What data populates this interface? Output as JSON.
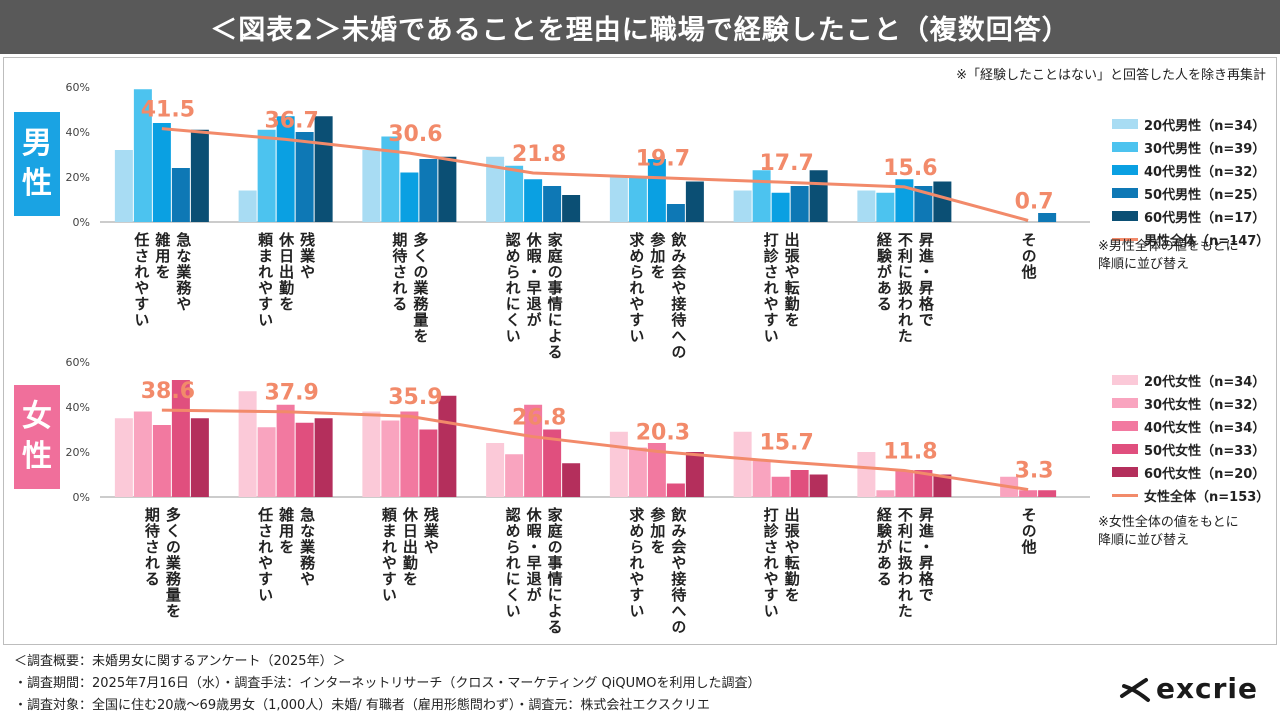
{
  "header": {
    "title": "＜図表2＞未婚であることを理由に職場で経験したこと（複数回答）",
    "note": "※「経験したことはない」と回答した人を除き再集計"
  },
  "male": {
    "badge": [
      "男",
      "性"
    ],
    "sort_note": [
      "※男性全体の値をもとに",
      "降順に並び替え"
    ]
  },
  "female": {
    "badge": [
      "女",
      "性"
    ],
    "sort_note": [
      "※女性全体の値をもとに",
      "降順に並び替え"
    ]
  },
  "colors": {
    "male_series": [
      "#a8dcf3",
      "#4cc3ef",
      "#0aa0e2",
      "#0e78b5",
      "#0b4f74"
    ],
    "male_total": "#f28a6a",
    "female_series": [
      "#fbc9d8",
      "#f9a4bf",
      "#f279a0",
      "#e04f7e",
      "#b42f5c"
    ],
    "female_total": "#f28a6a",
    "male_badge": "#1aa3e3",
    "female_badge": "#f06f9b"
  },
  "chart_data": [
    {
      "type": "bar",
      "group": "male",
      "ylim": [
        0,
        60
      ],
      "yticks": [
        "0%",
        "20%",
        "40%",
        "60%"
      ],
      "categories": [
        [
          "急な業務や",
          "雑用を",
          "任されやすい"
        ],
        [
          "残業や",
          "休日出勤を",
          "頼まれやすい"
        ],
        [
          "多くの業務量を",
          "期待される"
        ],
        [
          "家庭の事情による",
          "休暇・早退が",
          "認められにくい"
        ],
        [
          "飲み会や接待への",
          "参加を",
          "求められやすい"
        ],
        [
          "出張や転勤を",
          "打診されやすい"
        ],
        [
          "昇進・昇格で",
          "不利に扱われた",
          "経験がある"
        ],
        [
          "その他"
        ]
      ],
      "series": [
        {
          "name": "20代男性（n=34）",
          "values": [
            32,
            14,
            32,
            29,
            20,
            14,
            14,
            0
          ]
        },
        {
          "name": "30代男性（n=39）",
          "values": [
            59,
            41,
            38,
            25,
            20,
            23,
            13,
            0
          ]
        },
        {
          "name": "40代男性（n=32）",
          "values": [
            44,
            47,
            22,
            19,
            28,
            13,
            19,
            0
          ]
        },
        {
          "name": "50代男性（n=25）",
          "values": [
            24,
            40,
            28,
            16,
            8,
            16,
            16,
            4
          ]
        },
        {
          "name": "60代男性（n=17）",
          "values": [
            41,
            47,
            29,
            12,
            18,
            23,
            18,
            0
          ]
        }
      ],
      "total": {
        "name": "男性全体（n=147）",
        "values": [
          41.5,
          36.7,
          30.6,
          21.8,
          19.7,
          17.7,
          15.6,
          0.7
        ],
        "labels": [
          "41.5",
          "36.7",
          "30.6",
          "21.8",
          "19.7",
          "17.7",
          "15.6",
          "0.7"
        ]
      }
    },
    {
      "type": "bar",
      "group": "female",
      "ylim": [
        0,
        60
      ],
      "yticks": [
        "0%",
        "20%",
        "40%",
        "60%"
      ],
      "categories": [
        [
          "多くの業務量を",
          "期待される"
        ],
        [
          "急な業務や",
          "雑用を",
          "任されやすい"
        ],
        [
          "残業や",
          "休日出勤を",
          "頼まれやすい"
        ],
        [
          "家庭の事情による",
          "休暇・早退が",
          "認められにくい"
        ],
        [
          "飲み会や接待への",
          "参加を",
          "求められやすい"
        ],
        [
          "出張や転勤を",
          "打診されやすい"
        ],
        [
          "昇進・昇格で",
          "不利に扱われた",
          "経験がある"
        ],
        [
          "その他"
        ]
      ],
      "series": [
        {
          "name": "20代女性（n=34）",
          "values": [
            35,
            47,
            38,
            24,
            29,
            29,
            20,
            0
          ]
        },
        {
          "name": "30代女性（n=32）",
          "values": [
            38,
            31,
            34,
            19,
            22,
            16,
            3,
            9
          ]
        },
        {
          "name": "40代女性（n=34）",
          "values": [
            32,
            41,
            38,
            41,
            24,
            9,
            12,
            3
          ]
        },
        {
          "name": "50代女性（n=33）",
          "values": [
            52,
            33,
            30,
            30,
            6,
            12,
            12,
            3
          ]
        },
        {
          "name": "60代女性（n=20）",
          "values": [
            35,
            35,
            45,
            15,
            20,
            10,
            10,
            0
          ]
        }
      ],
      "total": {
        "name": "女性全体（n=153）",
        "values": [
          38.6,
          37.9,
          35.9,
          26.8,
          20.3,
          15.7,
          11.8,
          3.3
        ],
        "labels": [
          "38.6",
          "37.9",
          "35.9",
          "26.8",
          "20.3",
          "15.7",
          "11.8",
          "3.3"
        ]
      }
    }
  ],
  "footer": {
    "lines": [
      "＜調査概要：未婚男女に関するアンケート（2025年）＞",
      "・調査期間：2025年7月16日（水）・調査手法：インターネットリサーチ（クロス・マーケティング QiQUMOを利用した調査）",
      "・調査対象：全国に住む20歳～69歳男女（1,000人）未婚/ 有職者（雇用形態問わず）・調査元：株式会社エクスクリエ"
    ]
  },
  "logo": {
    "text": "excrie"
  }
}
